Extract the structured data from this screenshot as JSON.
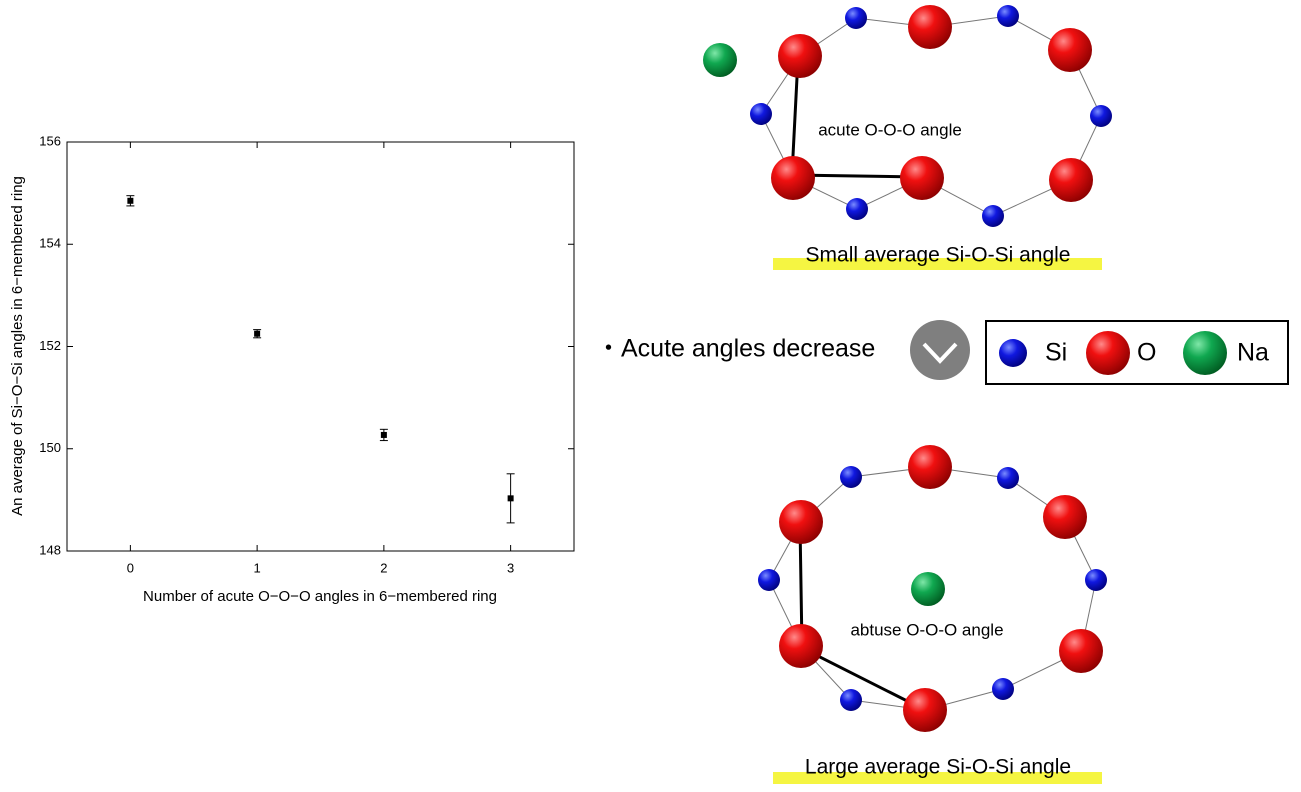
{
  "chart_data": {
    "type": "scatter",
    "xlabel": "Number of acute O−O−O angles in 6−membered ring",
    "ylabel": "An average of Si−O−Si angles in 6−membered ring",
    "x": [
      0,
      1,
      2,
      3
    ],
    "values": [
      154.85,
      152.25,
      150.27,
      149.03
    ],
    "errors": [
      0.1,
      0.08,
      0.11,
      0.48
    ],
    "color": "#000000",
    "xlim": [
      -0.5,
      3.5
    ],
    "ylim": [
      148,
      156
    ],
    "xticks": [
      0,
      1,
      2,
      3
    ],
    "yticks": [
      148,
      150,
      152,
      154,
      156
    ]
  },
  "diagrams": {
    "top": {
      "angle_label": "acute O-O-O angle",
      "caption": "Small average Si-O-Si angle"
    },
    "arrow_text": "・Acute angles decrease",
    "legend": {
      "items": [
        "Si",
        "O",
        "Na"
      ]
    },
    "bottom": {
      "angle_label": "abtuse O-O-O angle",
      "caption": "Large average Si-O-Si angle"
    }
  }
}
